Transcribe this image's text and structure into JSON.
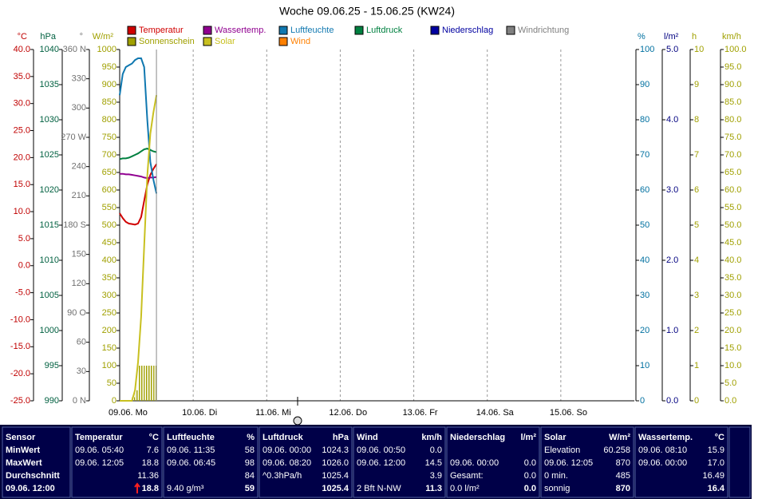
{
  "chart_data": {
    "type": "line",
    "title": "Woche 09.06.25 - 15.06.25 (KW24)",
    "xlim": [
      0,
      168
    ],
    "xticks": [
      {
        "value": 0,
        "label": "09.06. Mo"
      },
      {
        "value": 24,
        "label": "10.06. Di"
      },
      {
        "value": 48,
        "label": "11.06. Mi"
      },
      {
        "value": 72,
        "label": "12.06. Do"
      },
      {
        "value": 96,
        "label": "13.06. Fr"
      },
      {
        "value": 120,
        "label": "14.06. Sa"
      },
      {
        "value": 144,
        "label": "15.06. So"
      }
    ],
    "grid": true,
    "x": [
      0,
      1,
      2,
      3,
      4,
      5,
      6,
      7,
      8,
      9,
      10,
      11,
      12
    ],
    "axes": [
      {
        "label": "°C",
        "side": "left",
        "color": "#c00000",
        "lim": [
          -25,
          40
        ],
        "ticks": [
          {
            "value": 40,
            "label": "40.0"
          },
          {
            "value": 35,
            "label": "35.0"
          },
          {
            "value": 30,
            "label": "30.0"
          },
          {
            "value": 25,
            "label": "25.0"
          },
          {
            "value": 20,
            "label": "20.0"
          },
          {
            "value": 15,
            "label": "15.0"
          },
          {
            "value": 10,
            "label": "10.0"
          },
          {
            "value": 5,
            "label": "5.0"
          },
          {
            "value": 0,
            "label": "0.0"
          },
          {
            "value": -5,
            "label": "-5.0"
          },
          {
            "value": -10,
            "label": "-10.0"
          },
          {
            "value": -15,
            "label": "-15.0"
          },
          {
            "value": -20,
            "label": "-20.0"
          },
          {
            "value": -25,
            "label": "-25.0"
          }
        ]
      },
      {
        "label": "hPa",
        "side": "left",
        "color": "#006040",
        "lim": [
          990,
          1040
        ],
        "ticks": [
          1040,
          1035,
          1030,
          1025,
          1020,
          1015,
          1010,
          1005,
          1000,
          995,
          990
        ]
      },
      {
        "label": "°",
        "side": "left",
        "color": "#707070",
        "lim": [
          0,
          360
        ],
        "ticks": [
          {
            "value": 360,
            "label": "360 N"
          },
          330,
          300,
          {
            "value": 270,
            "label": "270 W"
          },
          240,
          210,
          {
            "value": 180,
            "label": "180 S"
          },
          150,
          120,
          {
            "value": 90,
            "label": "90 O"
          },
          60,
          30,
          {
            "value": 0,
            "label": "0 N"
          }
        ]
      },
      {
        "label": "W/m²",
        "side": "left",
        "color": "#a0a000",
        "lim": [
          0,
          1000
        ],
        "ticks": [
          1000,
          950,
          900,
          850,
          800,
          750,
          700,
          650,
          600,
          550,
          500,
          450,
          400,
          350,
          300,
          250,
          200,
          150,
          100,
          50,
          0
        ]
      },
      {
        "label": "%",
        "side": "right",
        "color": "#0070a0",
        "lim": [
          0,
          100
        ],
        "ticks": [
          100,
          90,
          80,
          70,
          60,
          50,
          40,
          30,
          20,
          10,
          0
        ]
      },
      {
        "label": "l/m²",
        "side": "right",
        "color": "#000080",
        "lim": [
          0,
          5
        ],
        "ticks": [
          {
            "value": 5,
            "label": "5.0"
          },
          {
            "value": 4,
            "label": "4.0"
          },
          {
            "value": 3,
            "label": "3.0"
          },
          {
            "value": 2,
            "label": "2.0"
          },
          {
            "value": 1,
            "label": "1.0"
          },
          {
            "value": 0,
            "label": "0.0"
          }
        ]
      },
      {
        "label": "h",
        "side": "right",
        "color": "#a0a000",
        "lim": [
          0,
          10
        ],
        "ticks": [
          10,
          9,
          8,
          7,
          6,
          5,
          4,
          3,
          2,
          1,
          0
        ]
      },
      {
        "label": "km/h",
        "side": "right",
        "color": "#a0a000",
        "lim": [
          0,
          100
        ],
        "ticks": [
          {
            "value": 100,
            "label": "100.0"
          },
          {
            "value": 95,
            "label": "95.0"
          },
          {
            "value": 90,
            "label": "90.0"
          },
          {
            "value": 85,
            "label": "85.0"
          },
          {
            "value": 80,
            "label": "80.0"
          },
          {
            "value": 75,
            "label": "75.0"
          },
          {
            "value": 70,
            "label": "70.0"
          },
          {
            "value": 65,
            "label": "65.0"
          },
          {
            "value": 60,
            "label": "60.0"
          },
          {
            "value": 55,
            "label": "55.0"
          },
          {
            "value": 50,
            "label": "50.0"
          },
          {
            "value": 45,
            "label": "45.0"
          },
          {
            "value": 40,
            "label": "40.0"
          },
          {
            "value": 35,
            "label": "35.0"
          },
          {
            "value": 30,
            "label": "30.0"
          },
          {
            "value": 25,
            "label": "25.0"
          },
          {
            "value": 20,
            "label": "20.0"
          },
          {
            "value": 15,
            "label": "15.0"
          },
          {
            "value": 10,
            "label": "10.0"
          },
          {
            "value": 5,
            "label": "5.0"
          },
          {
            "value": 0,
            "label": "0.0"
          }
        ]
      }
    ],
    "series": [
      {
        "name": "Temperatur",
        "color": "#d00000",
        "axis": 0,
        "values": [
          9.7,
          8.8,
          8.1,
          7.8,
          7.7,
          7.6,
          7.8,
          9.0,
          12.0,
          15.0,
          16.8,
          17.9,
          18.8
        ]
      },
      {
        "name": "Wassertemp.",
        "color": "#900090",
        "axis": 0,
        "values": [
          17.0,
          17.0,
          16.9,
          16.9,
          16.8,
          16.7,
          16.6,
          16.5,
          16.3,
          16.2,
          16.3,
          16.3,
          16.4
        ]
      },
      {
        "name": "Luftfeuchte",
        "color": "#1078b0",
        "axis": 4,
        "values": [
          87,
          93,
          95,
          95.5,
          96,
          97,
          97.5,
          97.5,
          95,
          80,
          68,
          63,
          59
        ]
      },
      {
        "name": "Luftdruck",
        "color": "#008040",
        "axis": 1,
        "values": [
          1024.4,
          1024.5,
          1024.5,
          1024.6,
          1024.8,
          1025.0,
          1025.2,
          1025.5,
          1025.8,
          1025.9,
          1025.7,
          1025.5,
          1025.4
        ]
      },
      {
        "name": "Niederschlag",
        "color": "#0000a0",
        "axis": 5,
        "values": [
          null,
          null,
          null,
          null,
          null,
          null,
          null,
          null,
          null,
          null,
          null,
          null,
          null
        ]
      },
      {
        "name": "Windrichtung",
        "color": "#808080",
        "axis": 2,
        "values": [
          null,
          null,
          null,
          null,
          null,
          null,
          null,
          null,
          null,
          null,
          null,
          null,
          null
        ]
      },
      {
        "name": "Sonnenschein",
        "color": "#a0a000",
        "axis": 6,
        "type": "bar",
        "values": [
          0,
          0,
          0,
          0,
          0,
          0.1,
          0.3,
          1,
          1,
          1,
          1,
          1,
          1
        ]
      },
      {
        "name": "Solar",
        "color": "#c8c020",
        "axis": 3,
        "values": [
          0,
          0,
          0,
          0,
          0,
          30,
          110,
          240,
          440,
          640,
          760,
          820,
          870
        ]
      },
      {
        "name": "Wind",
        "color": "#ff8000",
        "axis": 7,
        "values": [
          null,
          null,
          null,
          null,
          null,
          null,
          null,
          null,
          null,
          null,
          null,
          null,
          null
        ]
      }
    ]
  },
  "table": {
    "blocks": [
      {
        "title": "Sensor",
        "rows": [
          {
            "left": "MinWert"
          },
          {
            "left": "MaxWert"
          },
          {
            "left": "Durchschnitt"
          },
          {
            "left": "09.06. 12:00"
          }
        ]
      },
      {
        "title": "Temperatur",
        "unit": "°C",
        "rows": [
          {
            "left": "09.06. 05:40",
            "right": "7.6"
          },
          {
            "left": "09.06. 12:05",
            "right": "18.8"
          },
          {
            "right": "11.36"
          },
          {
            "right": "18.8"
          }
        ]
      },
      {
        "title": "Luftfeuchte",
        "unit": "%",
        "rows": [
          {
            "left": "09.06. 11:35",
            "right": "58"
          },
          {
            "left": "09.06. 06:45",
            "right": "98"
          },
          {
            "right": "84"
          },
          {
            "left": "9.40 g/m³",
            "right": "59"
          }
        ]
      },
      {
        "title": "Luftdruck",
        "unit": "hPa",
        "rows": [
          {
            "left": "09.06. 00:00",
            "right": "1024.3"
          },
          {
            "left": "09.06. 08:20",
            "right": "1026.0"
          },
          {
            "left": "^0.3hPa/h",
            "right": "1025.4"
          },
          {
            "right": "1025.4"
          }
        ]
      },
      {
        "title": "Wind",
        "unit": "km/h",
        "rows": [
          {
            "left": "09.06. 00:50",
            "right": "0.0"
          },
          {
            "left": "09.06. 12:00",
            "right": "14.5"
          },
          {
            "right": "3.9"
          },
          {
            "left": "2 Bft N-NW",
            "right": "11.3"
          }
        ]
      },
      {
        "title": "Niederschlag",
        "unit": "l/m²",
        "rows": [
          null,
          {
            "left": "09.06. 00:00",
            "right": "0.0"
          },
          {
            "left": "Gesamt:",
            "right": "0.0"
          },
          {
            "left": "0.0 l/m²",
            "right": "0.0"
          }
        ]
      },
      {
        "title": "Solar",
        "unit": "W/m²",
        "rows": [
          {
            "left": "Elevation",
            "right": "60.258"
          },
          {
            "left": "09.06. 12:05",
            "right": "870"
          },
          {
            "left": "0 min.",
            "right": "485"
          },
          {
            "left": "sonnig",
            "right": "870"
          }
        ]
      },
      {
        "title": "Wassertemp.",
        "unit": "°C",
        "rows": [
          {
            "left": "09.06. 08:10",
            "right": "15.9"
          },
          {
            "left": "09.06. 00:00",
            "right": "17.0"
          },
          {
            "right": "16.49"
          },
          {
            "right": "16.4"
          }
        ]
      }
    ]
  }
}
